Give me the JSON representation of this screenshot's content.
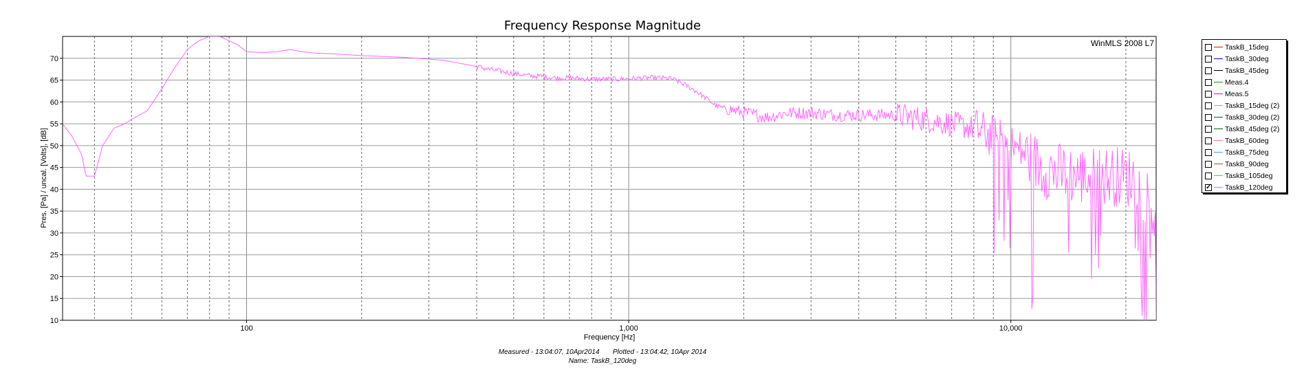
{
  "chart_data": {
    "type": "line",
    "title": "Frequency Response Magnitude",
    "watermark": "WinMLS 2008 L7",
    "xlabel": "Frequency [Hz]",
    "ylabel": "Pres. [Pa] / uncal. [Volts], [dB]",
    "x_scale": "log",
    "xlim": [
      33,
      24000
    ],
    "ylim": [
      10,
      75
    ],
    "yticks": [
      10,
      15,
      20,
      25,
      30,
      35,
      40,
      45,
      50,
      55,
      60,
      65,
      70
    ],
    "xtick_labels": [
      {
        "value": 100,
        "label": "100"
      },
      {
        "value": 1000,
        "label": "1,000"
      },
      {
        "value": 10000,
        "label": "10,000"
      }
    ],
    "grid": true,
    "legend_position": "outside-right",
    "series": [
      {
        "name": "TaskB_120deg",
        "color": "#ff66ff",
        "x": [
          33,
          35,
          37,
          38,
          40,
          42,
          45,
          48,
          50,
          55,
          60,
          65,
          70,
          75,
          80,
          85,
          90,
          95,
          100,
          110,
          120,
          130,
          140,
          150,
          170,
          200,
          230,
          260,
          300,
          330,
          380,
          430,
          500,
          550,
          600,
          650,
          700,
          800,
          900,
          1000,
          1100,
          1200,
          1300,
          1400,
          1500,
          1700,
          2000,
          2300,
          2600,
          3000,
          3500,
          4000,
          5000,
          6000,
          7000,
          8000,
          9000,
          10000,
          11000,
          12000,
          13000,
          14000,
          15000,
          17000,
          19000,
          21000,
          23000,
          24000
        ],
        "y": [
          55,
          52,
          48,
          43,
          43,
          50,
          54,
          55,
          56,
          58,
          63,
          68,
          72,
          74,
          75,
          75,
          74,
          73,
          71.5,
          71.3,
          71.5,
          72,
          71.5,
          71.2,
          71,
          70.6,
          70.4,
          70.2,
          69.8,
          69.5,
          68.5,
          67.5,
          66.5,
          66,
          65.8,
          65.5,
          65.5,
          65.2,
          65.2,
          65.3,
          65.5,
          65.5,
          65.3,
          64,
          62.5,
          59,
          57.5,
          56.5,
          57.5,
          57.5,
          57,
          57,
          57,
          56,
          55,
          54,
          52,
          50,
          48,
          45,
          44,
          43.5,
          43,
          43,
          43,
          42.5,
          38,
          32
        ]
      }
    ],
    "footer_lines": [
      "Measured - 13:04:07, 10Apr2014       Plotted - 13:04:42, 10Apr 2014",
      "Name: TaskB_120deg"
    ]
  },
  "legend": [
    {
      "label": "TaskB_15deg",
      "color": "#ff0000",
      "checked": false
    },
    {
      "label": "TaskB_30deg",
      "color": "#0000ff",
      "checked": false
    },
    {
      "label": "TaskB_45deg",
      "color": "#000000",
      "checked": false
    },
    {
      "label": "Meas.4",
      "color": "#00aa00",
      "checked": false
    },
    {
      "label": "Meas.5",
      "color": "#cc00cc",
      "checked": false
    },
    {
      "label": "TaskB_15deg (2)",
      "color": "#9999ff",
      "checked": false
    },
    {
      "label": "TaskB_30deg (2)",
      "color": "#005555",
      "checked": false
    },
    {
      "label": "TaskB_45deg (2)",
      "color": "#006600",
      "checked": false
    },
    {
      "label": "TaskB_60deg",
      "color": "#ff7777",
      "checked": false
    },
    {
      "label": "TaskB_75deg",
      "color": "#33aacc",
      "checked": false
    },
    {
      "label": "TaskB_90deg",
      "color": "#885533",
      "checked": false
    },
    {
      "label": "TaskB_105deg",
      "color": "#55cc55",
      "checked": false
    },
    {
      "label": "TaskB_120deg",
      "color": "#ff66ff",
      "checked": true
    }
  ]
}
